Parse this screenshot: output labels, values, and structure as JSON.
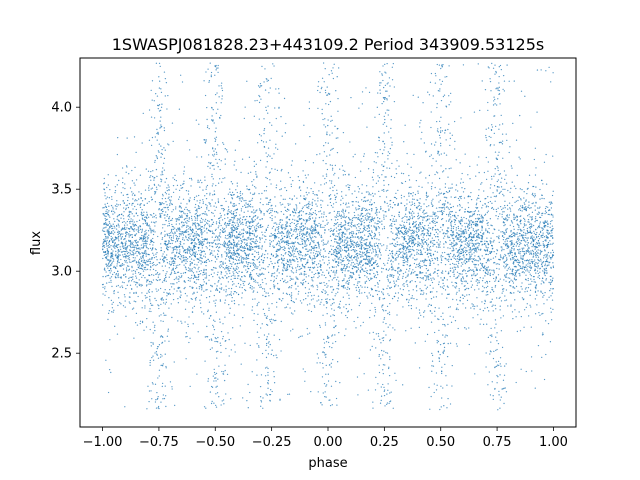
{
  "chart_data": {
    "type": "scatter",
    "title": "1SWASPJ081828.23+443109.2 Period 343909.53125s",
    "xlabel": "phase",
    "ylabel": "flux",
    "xlim": [
      -1.1,
      1.1
    ],
    "ylim": [
      2.05,
      4.3
    ],
    "xticks": [
      -1.0,
      -0.75,
      -0.5,
      -0.25,
      0.0,
      0.25,
      0.5,
      0.75,
      1.0
    ],
    "xtick_labels": [
      "−1.00",
      "−0.75",
      "−0.50",
      "−0.25",
      "0.00",
      "0.25",
      "0.50",
      "0.75",
      "1.00"
    ],
    "yticks": [
      2.5,
      3.0,
      3.5,
      4.0
    ],
    "ytick_labels": [
      "2.5",
      "3.0",
      "3.5",
      "4.0"
    ],
    "grid": false,
    "point_color": "#1f77b4",
    "x_range_observed": [
      -1.0,
      1.0
    ],
    "flux_core_range": [
      2.75,
      3.65
    ],
    "flux_outlier_range": [
      2.15,
      4.27
    ],
    "pattern": "eight periodic clusters of points across phase -1 to 1, centred near flux 3.15, separated by narrow sparse gaps at phase -0.75, -0.5, -0.27, 0.0, 0.25, 0.5, 0.75",
    "cluster_centers_phase": [
      -0.88,
      -0.63,
      -0.39,
      -0.14,
      0.11,
      0.37,
      0.62,
      0.87
    ],
    "gap_phases": [
      -0.75,
      -0.5,
      -0.27,
      0.0,
      0.25,
      0.5,
      0.75
    ]
  }
}
